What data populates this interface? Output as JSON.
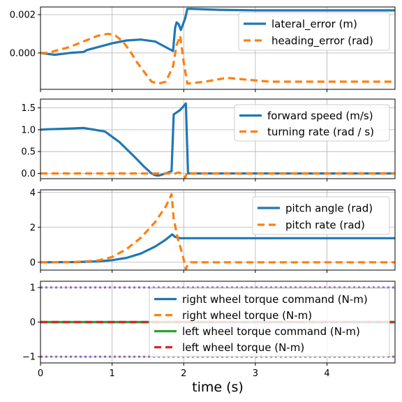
{
  "figure": {
    "xlabel": "time (s)",
    "x_ticks": [
      0,
      1,
      2,
      3,
      4
    ],
    "x_tick_labels": [
      "0",
      "1",
      "2",
      "3",
      "4"
    ]
  },
  "colors": {
    "blue": "#1f77b4",
    "orange": "#ff7f0e",
    "green": "#2ca02c",
    "red": "#d62728",
    "purple": "#9467bd",
    "grid": "#b0b0b0"
  },
  "chart_data": [
    {
      "type": "line",
      "xlim": [
        0,
        4.95
      ],
      "ylim": [
        -0.0019,
        0.0024
      ],
      "y_ticks": [
        0,
        0.002
      ],
      "y_tick_labels": [
        "0.000",
        "0.002"
      ],
      "grid": true,
      "legend_loc": "upper right",
      "series": [
        {
          "name": "lateral_error (m)",
          "color_key": "blue",
          "style": "solid",
          "x": [
            0,
            0.2,
            0.4,
            0.6,
            0.65,
            0.8,
            1.0,
            1.2,
            1.4,
            1.6,
            1.75,
            1.85,
            1.88,
            1.9,
            1.93,
            1.96,
            1.98,
            2.02,
            2.05,
            2.1,
            2.5,
            3.0,
            4.0,
            4.95
          ],
          "y": [
            0,
            -0.0001,
            0.0,
            5e-05,
            0.00015,
            0.0003,
            0.0005,
            0.00065,
            0.0007,
            0.0006,
            0.0003,
            0.0001,
            0.0013,
            0.0016,
            0.0015,
            0.0012,
            0.0014,
            0.0018,
            0.0023,
            0.0023,
            0.00225,
            0.00222,
            0.00222,
            0.00222
          ]
        },
        {
          "name": "heading_error (rad)",
          "color_key": "orange",
          "style": "dashed",
          "x": [
            0,
            0.1,
            0.2,
            0.4,
            0.6,
            0.8,
            0.95,
            1.05,
            1.15,
            1.25,
            1.35,
            1.45,
            1.55,
            1.65,
            1.75,
            1.85,
            1.9,
            1.95,
            2.0,
            2.05,
            2.3,
            2.6,
            2.9,
            3.2,
            4.0,
            4.95
          ],
          "y": [
            0,
            0,
            0.0001,
            0.0003,
            0.0006,
            0.0009,
            0.001,
            0.0009,
            0.0006,
            0.0001,
            -0.0005,
            -0.001,
            -0.0015,
            -0.0016,
            -0.0015,
            -0.0007,
            0.0004,
            0.0009,
            -0.0005,
            -0.0016,
            -0.0015,
            -0.0013,
            -0.0014,
            -0.0015,
            -0.0015,
            -0.0015
          ]
        }
      ]
    },
    {
      "type": "line",
      "xlim": [
        0,
        4.95
      ],
      "ylim": [
        -0.12,
        1.7
      ],
      "y_ticks": [
        0,
        0.5,
        1.0,
        1.5
      ],
      "y_tick_labels": [
        "0.0",
        "0.5",
        "1.0",
        "1.5"
      ],
      "grid": true,
      "legend_loc": "upper right",
      "series": [
        {
          "name": "forward speed (m/s)",
          "color_key": "blue",
          "style": "solid",
          "x": [
            0,
            0.1,
            0.3,
            0.6,
            0.9,
            1.1,
            1.3,
            1.45,
            1.55,
            1.6,
            1.65,
            1.75,
            1.83,
            1.86,
            1.95,
            2.03,
            2.06,
            2.1,
            3.0,
            4.95
          ],
          "y": [
            1.0,
            1.01,
            1.02,
            1.04,
            0.96,
            0.72,
            0.4,
            0.15,
            0.0,
            -0.04,
            -0.05,
            0.0,
            0.05,
            1.35,
            1.45,
            1.6,
            0.0,
            0.0,
            0.0,
            0.0
          ]
        },
        {
          "name": "turning rate (rad / s)",
          "color_key": "orange",
          "style": "dashed",
          "x": [
            0,
            1.8,
            1.87,
            1.92,
            1.98,
            2.02,
            2.05,
            2.1,
            4.95
          ],
          "y": [
            0,
            0,
            -0.01,
            0.02,
            0.0,
            -0.1,
            0.03,
            0.0,
            0.0
          ]
        }
      ]
    },
    {
      "type": "line",
      "xlim": [
        0,
        4.95
      ],
      "ylim": [
        -0.45,
        4.15
      ],
      "y_ticks": [
        0,
        2,
        4
      ],
      "y_tick_labels": [
        "0",
        "2",
        "4"
      ],
      "grid": true,
      "legend_loc": "upper right",
      "series": [
        {
          "name": "pitch angle (rad)",
          "color_key": "blue",
          "style": "solid",
          "x": [
            0,
            0.5,
            0.8,
            1.0,
            1.2,
            1.4,
            1.6,
            1.75,
            1.84,
            1.88,
            1.95,
            2.05,
            4.95
          ],
          "y": [
            0,
            0.01,
            0.05,
            0.12,
            0.25,
            0.5,
            0.9,
            1.3,
            1.6,
            1.45,
            1.38,
            1.38,
            1.38
          ]
        },
        {
          "name": "pitch rate (rad)",
          "color_key": "orange",
          "style": "dashed",
          "x": [
            0,
            0.5,
            0.8,
            1.0,
            1.2,
            1.4,
            1.6,
            1.75,
            1.83,
            1.86,
            1.92,
            1.98,
            2.03,
            2.06,
            2.1,
            4.95
          ],
          "y": [
            0,
            0.02,
            0.1,
            0.3,
            0.75,
            1.4,
            2.3,
            3.2,
            3.9,
            2.5,
            1.3,
            0.5,
            -0.4,
            -0.1,
            0.0,
            0.0
          ]
        }
      ]
    },
    {
      "type": "line",
      "xlim": [
        0,
        4.95
      ],
      "ylim": [
        -1.18,
        1.18
      ],
      "y_ticks": [
        -1,
        0,
        1
      ],
      "y_tick_labels": [
        "−1",
        "0",
        "1"
      ],
      "grid": true,
      "legend_loc": "upper right",
      "reference_lines": [
        {
          "y": 1,
          "color_key": "purple",
          "style": "dotted"
        },
        {
          "y": -1,
          "color_key": "purple",
          "style": "dotted"
        }
      ],
      "series": [
        {
          "name": "right wheel torque command (N-m)",
          "color_key": "blue",
          "style": "solid",
          "x": [
            0,
            4.95
          ],
          "y": [
            0,
            0
          ]
        },
        {
          "name": "right wheel torque (N-m)",
          "color_key": "orange",
          "style": "dashed",
          "x": [
            0,
            4.95
          ],
          "y": [
            0,
            0
          ]
        },
        {
          "name": "left wheel torque command (N-m)",
          "color_key": "green",
          "style": "solid",
          "x": [
            0,
            4.95
          ],
          "y": [
            0,
            0
          ]
        },
        {
          "name": "left wheel torque (N-m)",
          "color_key": "red",
          "style": "dashed",
          "x": [
            0,
            4.95
          ],
          "y": [
            0,
            0
          ]
        }
      ]
    }
  ]
}
